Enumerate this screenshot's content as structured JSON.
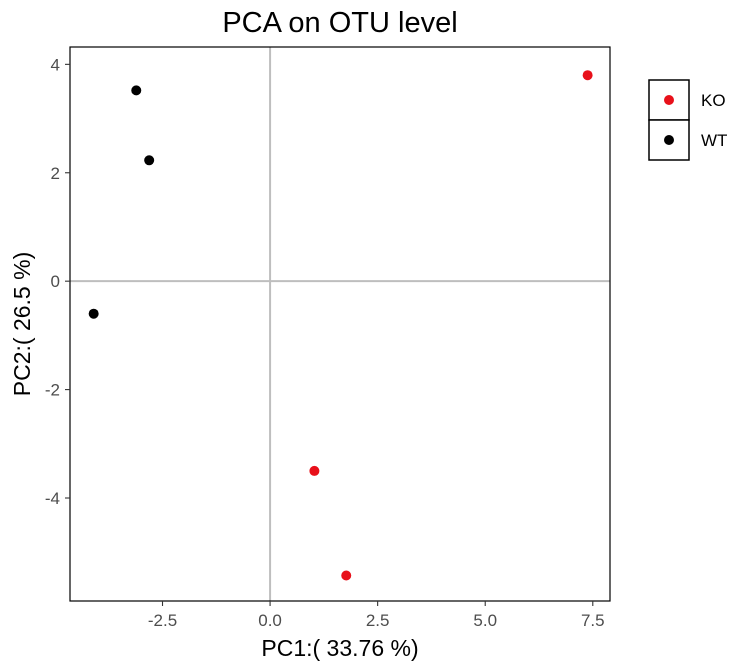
{
  "chart_data": {
    "type": "scatter",
    "title": "PCA on OTU level",
    "xlabel": "PC1:( 33.76 %)",
    "ylabel": "PC2:( 26.5 %)",
    "xlim": [
      -4.65,
      7.9
    ],
    "ylim": [
      -5.9,
      4.32
    ],
    "xticks": [
      {
        "value": -2.5,
        "label": "-2.5"
      },
      {
        "value": 0.0,
        "label": "0.0"
      },
      {
        "value": 2.5,
        "label": "2.5"
      },
      {
        "value": 5.0,
        "label": "5.0"
      },
      {
        "value": 7.5,
        "label": "7.5"
      }
    ],
    "yticks": [
      {
        "value": 4,
        "label": "4"
      },
      {
        "value": 2,
        "label": "2"
      },
      {
        "value": 0,
        "label": "0"
      },
      {
        "value": -2,
        "label": "-2"
      },
      {
        "value": -4,
        "label": "-4"
      }
    ],
    "zero_lines": true,
    "grid": false,
    "legend_position": "right-top",
    "series": [
      {
        "name": "KO",
        "color": "#e8101a",
        "points": [
          {
            "x": 7.38,
            "y": 3.8
          },
          {
            "x": 1.03,
            "y": -3.5
          },
          {
            "x": 1.77,
            "y": -5.43
          }
        ]
      },
      {
        "name": "WT",
        "color": "#000000",
        "points": [
          {
            "x": -3.11,
            "y": 3.52
          },
          {
            "x": -2.81,
            "y": 2.23
          },
          {
            "x": -4.1,
            "y": -0.6
          }
        ]
      }
    ]
  }
}
